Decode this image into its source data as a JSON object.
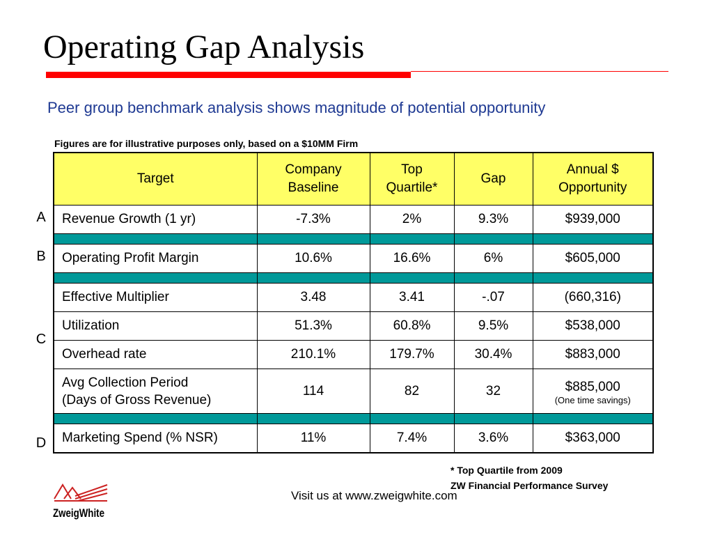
{
  "title": "Operating Gap Analysis",
  "subtitle": "Peer group benchmark analysis shows magnitude of potential opportunity",
  "note": "Figures are for illustrative purposes only, based on a $10MM Firm",
  "table": {
    "headers": [
      "Target",
      "Company\nBaseline",
      "Top\nQuartile*",
      "Gap",
      "Annual $\nOpportunity"
    ],
    "rows": [
      {
        "target": "Revenue Growth (1 yr)",
        "baseline": "-7.3%",
        "top_quartile": "2%",
        "gap": "9.3%",
        "opportunity": "$939,000"
      },
      {
        "target": "Operating Profit Margin",
        "baseline": "10.6%",
        "top_quartile": "16.6%",
        "gap": "6%",
        "opportunity": "$605,000"
      },
      {
        "target": "Effective Multiplier",
        "baseline": "3.48",
        "top_quartile": "3.41",
        "gap": "-.07",
        "opportunity": "(660,316)"
      },
      {
        "target": "Utilization",
        "baseline": "51.3%",
        "top_quartile": "60.8%",
        "gap": "9.5%",
        "opportunity": "$538,000"
      },
      {
        "target": "Overhead rate",
        "baseline": "210.1%",
        "top_quartile": "179.7%",
        "gap": "30.4%",
        "opportunity": "$883,000"
      },
      {
        "target": "Avg Collection Period\n(Days of Gross Revenue)",
        "baseline": "114",
        "top_quartile": "82",
        "gap": "32",
        "opportunity": "$885,000",
        "opportunity_note": "(One time savings)"
      },
      {
        "target": "Marketing Spend (% NSR)",
        "baseline": "11%",
        "top_quartile": "7.4%",
        "gap": "3.6%",
        "opportunity": "$363,000"
      }
    ]
  },
  "group_letters": [
    "A",
    "B",
    "C",
    "D"
  ],
  "footnote": {
    "line1": "* Top Quartile from 2009",
    "line2": "ZW Financial Performance Survey"
  },
  "visit": "Visit us at www.zweigwhite.com",
  "logo": {
    "text": "ZweigWhite"
  },
  "colors": {
    "header_bg": "#ffff66",
    "separator": "#009999",
    "rule": "#ff0000",
    "subtitle": "#1f3a93"
  }
}
